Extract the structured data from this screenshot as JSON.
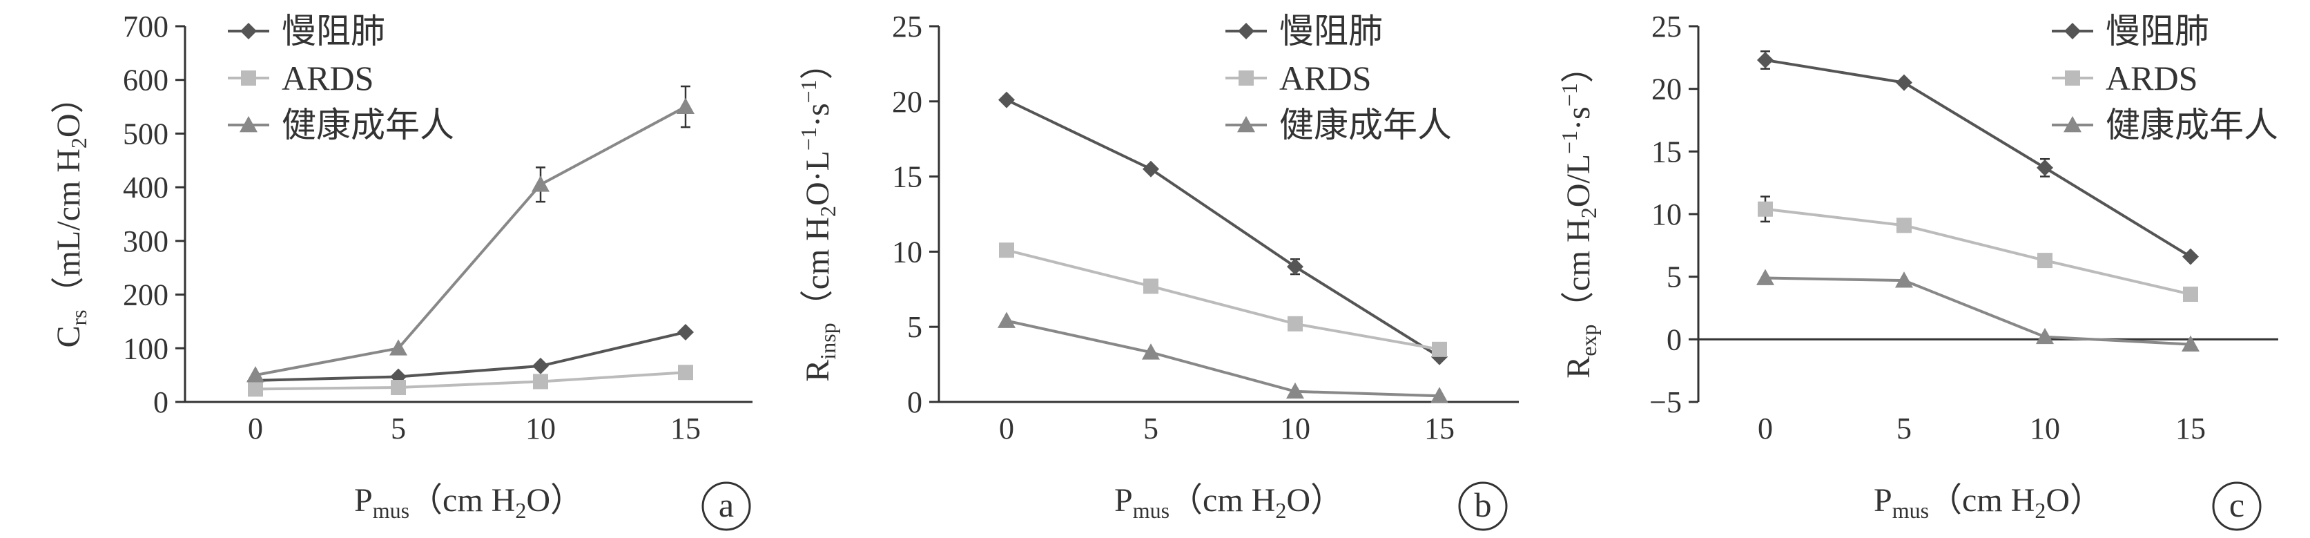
{
  "colors": {
    "copd": "#555555",
    "ards": "#bbbbbb",
    "healthy": "#888888",
    "axis": "#333333"
  },
  "chart_data": [
    {
      "type": "line",
      "panel": "a",
      "ylabel_main": "C",
      "ylabel_sub": "rs",
      "ylabel_unit_pre": "（mL/cm H",
      "ylabel_unit_sub": "2",
      "ylabel_unit_post": "O）",
      "xlabel_main": "P",
      "xlabel_sub": "mus",
      "xlabel_unit_pre": "（cm H",
      "xlabel_unit_sub": "2",
      "xlabel_unit_post": "O）",
      "x": [
        0,
        5,
        10,
        15
      ],
      "xticks": [
        "0",
        "5",
        "10",
        "15"
      ],
      "ylim": [
        0,
        700
      ],
      "yticks": [
        0,
        100,
        200,
        300,
        400,
        500,
        600,
        700
      ],
      "series": [
        {
          "name": "慢阻肺",
          "key": "copd",
          "marker": "diamond",
          "values": [
            40,
            47,
            67,
            130
          ],
          "err": [
            0,
            0,
            0,
            0
          ]
        },
        {
          "name": "ARDS",
          "key": "ards",
          "marker": "square",
          "values": [
            24,
            27,
            38,
            55
          ],
          "err": [
            0,
            0,
            0,
            0
          ]
        },
        {
          "name": "健康成年人",
          "key": "healthy",
          "marker": "triangle",
          "values": [
            50,
            100,
            405,
            550
          ],
          "err": [
            0,
            0,
            32,
            38
          ]
        }
      ]
    },
    {
      "type": "line",
      "panel": "b",
      "ylabel_main": "R",
      "ylabel_sub": "insp",
      "ylabel_unit_pre": "（cm H",
      "ylabel_unit_sub": "2",
      "ylabel_unit_post": "O·L",
      "ylabel_unit_sup1": "−1",
      "ylabel_unit_mid": "·s",
      "ylabel_unit_sup2": "−1",
      "ylabel_unit_end": "）",
      "xlabel_main": "P",
      "xlabel_sub": "mus",
      "xlabel_unit_pre": "（cm H",
      "xlabel_unit_sub": "2",
      "xlabel_unit_post": "O）",
      "x": [
        0,
        5,
        10,
        15
      ],
      "xticks": [
        "0",
        "5",
        "10",
        "15"
      ],
      "ylim": [
        0,
        25
      ],
      "yticks": [
        0,
        5,
        10,
        15,
        20,
        25
      ],
      "series": [
        {
          "name": "慢阻肺",
          "key": "copd",
          "marker": "diamond",
          "values": [
            20.1,
            15.5,
            9.0,
            3.0
          ],
          "err": [
            0,
            0,
            0.5,
            0
          ]
        },
        {
          "name": "ARDS",
          "key": "ards",
          "marker": "square",
          "values": [
            10.1,
            7.7,
            5.2,
            3.5
          ],
          "err": [
            0,
            0,
            0,
            0
          ]
        },
        {
          "name": "健康成年人",
          "key": "healthy",
          "marker": "triangle",
          "values": [
            5.4,
            3.3,
            0.7,
            0.4
          ],
          "err": [
            0,
            0,
            0,
            0
          ]
        }
      ]
    },
    {
      "type": "line",
      "panel": "c",
      "ylabel_main": "R",
      "ylabel_sub": "exp",
      "ylabel_unit_pre": "（cm H",
      "ylabel_unit_sub": "2",
      "ylabel_unit_post": "O/L",
      "ylabel_unit_sup1": "−1",
      "ylabel_unit_mid": "·s",
      "ylabel_unit_sup2": "−1",
      "ylabel_unit_end": "）",
      "xlabel_main": "P",
      "xlabel_sub": "mus",
      "xlabel_unit_pre": "（cm H",
      "xlabel_unit_sub": "2",
      "xlabel_unit_post": "O）",
      "x": [
        0,
        5,
        10,
        15
      ],
      "xticks": [
        "0",
        "5",
        "10",
        "15"
      ],
      "ylim": [
        -5,
        25
      ],
      "yticks": [
        -5,
        0,
        5,
        10,
        15,
        20,
        25
      ],
      "ytick_labels": [
        "−5",
        "0",
        "5",
        "10",
        "15",
        "20",
        "25"
      ],
      "series": [
        {
          "name": "慢阻肺",
          "key": "copd",
          "marker": "diamond",
          "values": [
            22.3,
            20.5,
            13.7,
            6.6
          ],
          "err": [
            0.7,
            0,
            0.7,
            0
          ]
        },
        {
          "name": "ARDS",
          "key": "ards",
          "marker": "square",
          "values": [
            10.4,
            9.1,
            6.3,
            3.6
          ],
          "err": [
            1.0,
            0,
            0,
            0
          ]
        },
        {
          "name": "健康成年人",
          "key": "healthy",
          "marker": "triangle",
          "values": [
            4.9,
            4.7,
            0.2,
            -0.4
          ],
          "err": [
            0,
            0,
            0,
            0
          ]
        }
      ]
    }
  ]
}
